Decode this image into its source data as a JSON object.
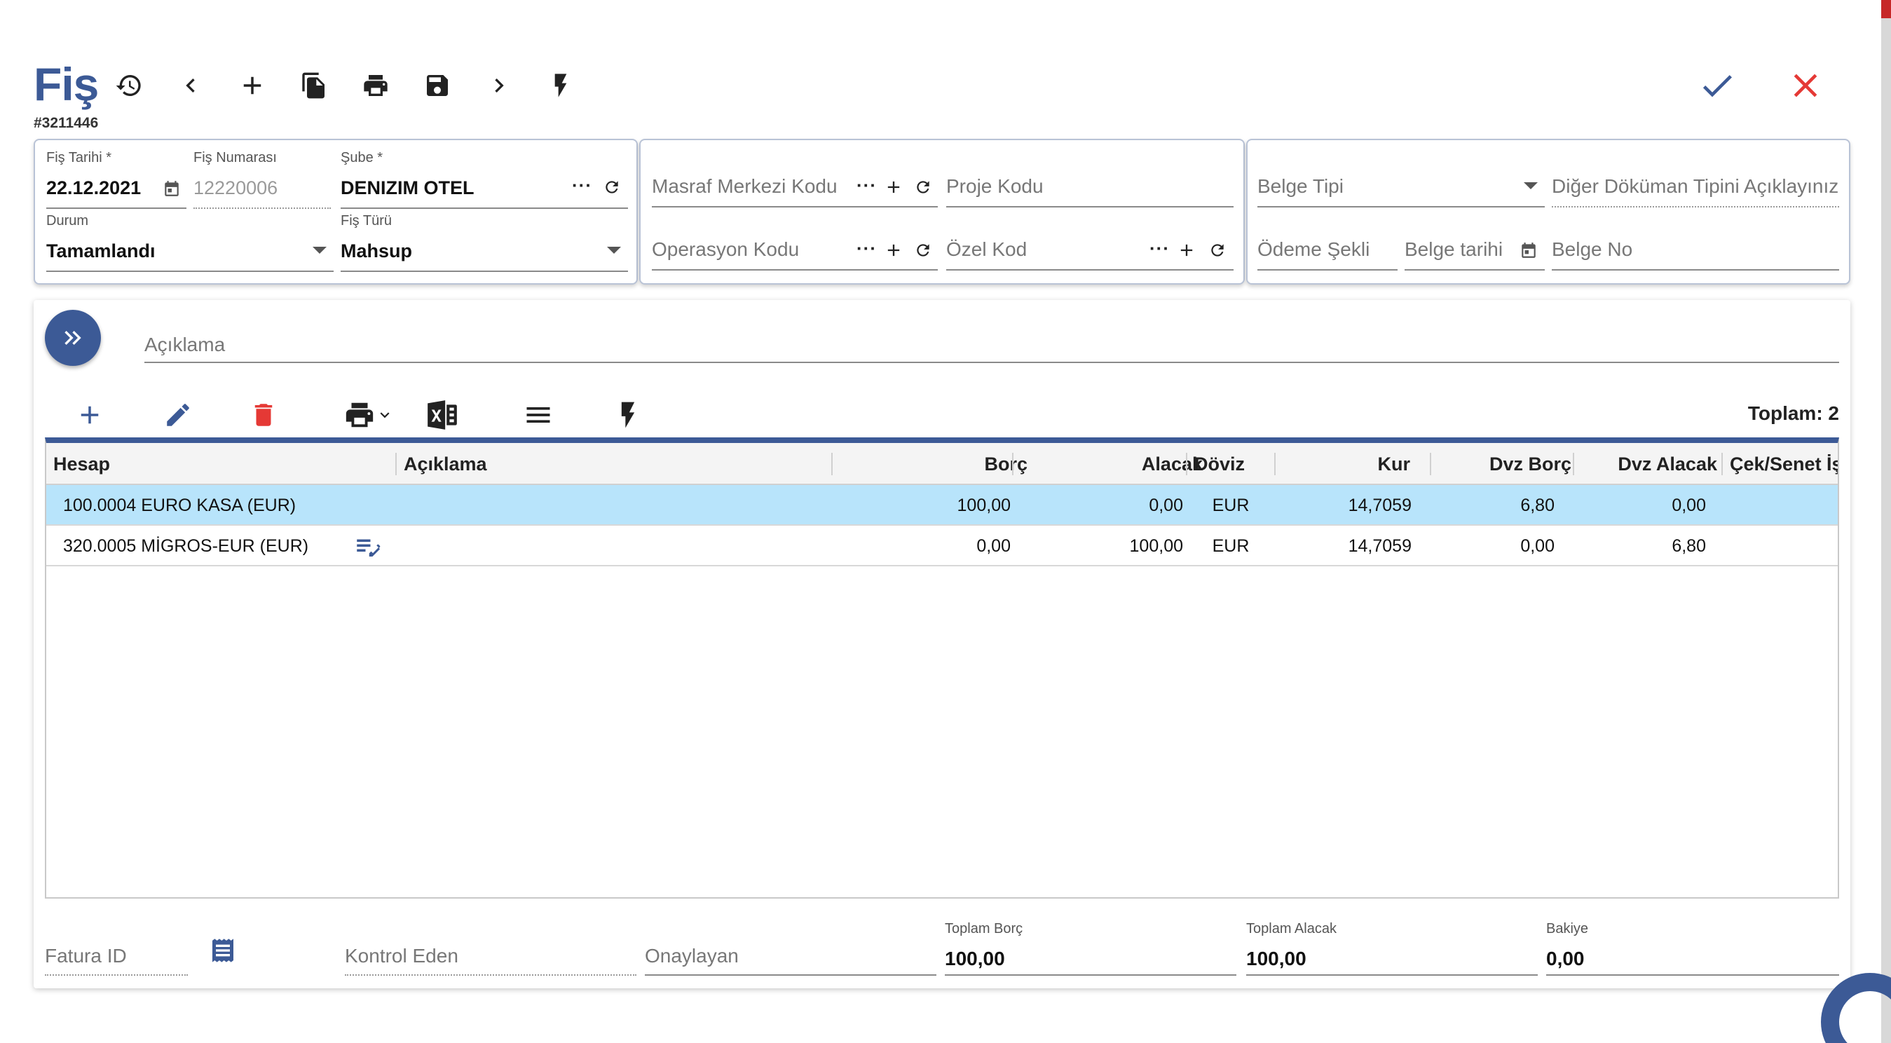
{
  "header": {
    "title": "Fiş",
    "doc_number": "#3211446"
  },
  "form": {
    "fis_tarihi": {
      "label": "Fiş Tarihi *",
      "value": "22.12.2021"
    },
    "fis_numarasi": {
      "label": "Fiş Numarası",
      "value": "12220006"
    },
    "sube": {
      "label": "Şube *",
      "value": "DENIZIM OTEL"
    },
    "durum": {
      "label": "Durum",
      "value": "Tamamlandı"
    },
    "fis_turu": {
      "label": "Fiş Türü",
      "value": "Mahsup"
    },
    "masraf_merkezi_kodu": {
      "placeholder": "Masraf Merkezi Kodu"
    },
    "proje_kodu": {
      "placeholder": "Proje Kodu"
    },
    "operasyon_kodu": {
      "placeholder": "Operasyon Kodu"
    },
    "ozel_kod": {
      "placeholder": "Özel Kod"
    },
    "belge_tipi": {
      "placeholder": "Belge Tipi"
    },
    "diger_dokuman": {
      "placeholder": "Diğer Döküman Tipini Açıklayınız"
    },
    "odeme_sekli": {
      "placeholder": "Ödeme Şekli"
    },
    "belge_tarihi": {
      "placeholder": "Belge tarihi"
    },
    "belge_no": {
      "placeholder": "Belge No"
    },
    "aciklama": {
      "placeholder": "Açıklama"
    },
    "more_glyph": "···"
  },
  "grid": {
    "total_label": "Toplam: 2",
    "columns": [
      "Hesap",
      "Açıklama",
      "Borç",
      "Alacak",
      "Döviz",
      "Kur",
      "Dvz Borç",
      "Dvz Alacak",
      "Çek/Senet İş"
    ],
    "rows": [
      {
        "hesap": "100.0004 EURO KASA (EUR)",
        "aciklama": "",
        "borc": "100,00",
        "alacak": "0,00",
        "doviz": "EUR",
        "kur": "14,7059",
        "dvz_borc": "6,80",
        "dvz_alacak": "0,00",
        "cek_senet": ""
      },
      {
        "hesap": "320.0005 MİGROS-EUR (EUR)",
        "aciklama": "",
        "borc": "0,00",
        "alacak": "100,00",
        "doviz": "EUR",
        "kur": "14,7059",
        "dvz_borc": "0,00",
        "dvz_alacak": "6,80",
        "cek_senet": ""
      }
    ]
  },
  "footer": {
    "fatura_id": {
      "placeholder": "Fatura ID"
    },
    "kontrol_eden": {
      "placeholder": "Kontrol Eden"
    },
    "onaylayan": {
      "placeholder": "Onaylayan"
    },
    "toplam_borc": {
      "label": "Toplam Borç",
      "value": "100,00"
    },
    "toplam_alacak": {
      "label": "Toplam Alacak",
      "value": "100,00"
    },
    "bakiye": {
      "label": "Bakiye",
      "value": "0,00"
    }
  },
  "icons": {
    "toolbar": [
      "history-icon",
      "chevron-left-icon",
      "add-icon",
      "copy-icon",
      "print-icon",
      "save-icon",
      "chevron-right-icon",
      "flash-icon"
    ],
    "confirm": "check-icon",
    "close": "close-icon"
  },
  "colors": {
    "primary": "#3c5a96",
    "selected_row": "#b8e4fb",
    "delete": "#e53935",
    "close": "#e53935"
  }
}
